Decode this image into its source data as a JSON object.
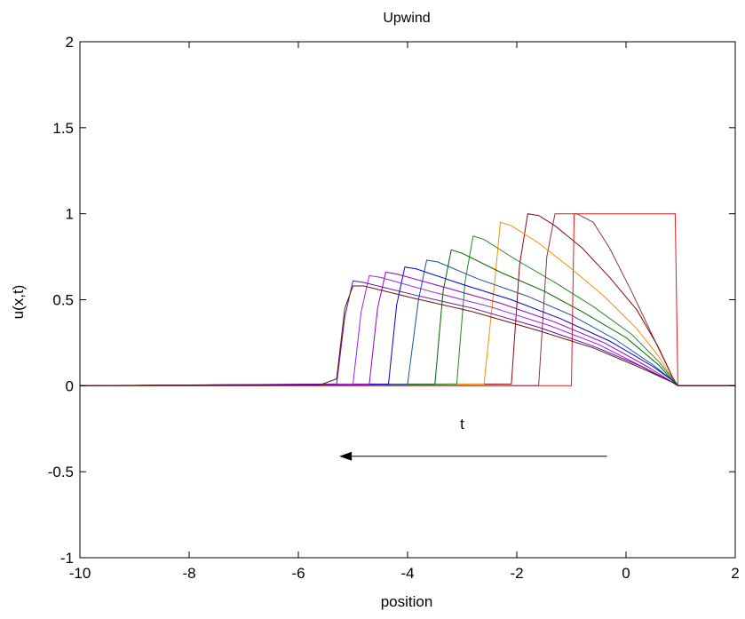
{
  "chart_data": {
    "type": "line",
    "title": "Upwind",
    "xlabel": "position",
    "ylabel": "u(x,t)",
    "xlim": [
      -10,
      2
    ],
    "ylim": [
      -1,
      2
    ],
    "xticks": [
      -10,
      -8,
      -6,
      -4,
      -2,
      0,
      2
    ],
    "yticks": [
      -1,
      -0.5,
      0,
      0.5,
      1,
      1.5,
      2
    ],
    "xtick_labels": [
      "-10",
      "-8",
      "-6",
      "-4",
      "-2",
      "0",
      "2"
    ],
    "ytick_labels": [
      "-1",
      "-0.5",
      "0",
      "0.5",
      "1",
      "1.5",
      "2"
    ],
    "grid": false,
    "annotation": {
      "label": "t",
      "label_x": -3.0,
      "label_y": -0.25,
      "arrow_from": [
        -0.35,
        -0.41
      ],
      "arrow_to": [
        -5.25,
        -0.41
      ],
      "color": "#000000"
    },
    "series": [
      {
        "color": "#e41a1c",
        "x": [
          -10,
          -1.0,
          -0.95,
          0.9,
          0.95,
          2
        ],
        "y": [
          0,
          0,
          1.0,
          1.0,
          0,
          0
        ]
      },
      {
        "color": "#8b3a3a",
        "x": [
          -10,
          -1.6,
          -1.45,
          -1.3,
          -0.9,
          -0.6,
          -0.3,
          0.1,
          0.5,
          0.85,
          0.95,
          2
        ],
        "y": [
          0,
          0,
          0.75,
          1.0,
          1.0,
          0.95,
          0.8,
          0.55,
          0.28,
          0.05,
          0,
          0
        ]
      },
      {
        "color": "#8b0a0a",
        "x": [
          -10,
          -2.1,
          -1.95,
          -1.8,
          -1.6,
          -1.3,
          -0.8,
          -0.3,
          0.2,
          0.6,
          0.85,
          0.95,
          2
        ],
        "y": [
          0,
          0.01,
          0.7,
          1.0,
          0.99,
          0.93,
          0.8,
          0.63,
          0.44,
          0.22,
          0.05,
          0,
          0
        ]
      },
      {
        "color": "#ff8c00",
        "x": [
          -10,
          -2.6,
          -2.4,
          -2.3,
          -2.1,
          -1.6,
          -1.0,
          -0.4,
          0.2,
          0.6,
          0.85,
          0.95,
          2
        ],
        "y": [
          0,
          0.01,
          0.62,
          0.95,
          0.93,
          0.83,
          0.68,
          0.52,
          0.33,
          0.17,
          0.04,
          0,
          0
        ]
      },
      {
        "color": "#228b22",
        "x": [
          -10,
          -3.1,
          -2.95,
          -2.8,
          -2.6,
          -2.0,
          -1.3,
          -0.6,
          0.1,
          0.6,
          0.85,
          0.95,
          2
        ],
        "y": [
          0,
          0.01,
          0.6,
          0.87,
          0.85,
          0.73,
          0.6,
          0.46,
          0.3,
          0.14,
          0.04,
          0,
          0
        ]
      },
      {
        "color": "#006400",
        "x": [
          -10,
          -3.5,
          -3.35,
          -3.2,
          -3.0,
          -2.3,
          -1.5,
          -0.8,
          0.0,
          0.6,
          0.85,
          0.95,
          2
        ],
        "y": [
          0,
          0.01,
          0.55,
          0.79,
          0.77,
          0.66,
          0.55,
          0.43,
          0.28,
          0.12,
          0.03,
          0,
          0
        ]
      },
      {
        "color": "#1e50a0",
        "x": [
          -10,
          -4.0,
          -3.8,
          -3.65,
          -3.45,
          -2.7,
          -1.8,
          -1.0,
          -0.2,
          0.5,
          0.85,
          0.95,
          2
        ],
        "y": [
          0,
          0.01,
          0.5,
          0.73,
          0.72,
          0.62,
          0.52,
          0.41,
          0.27,
          0.12,
          0.03,
          0,
          0
        ]
      },
      {
        "color": "#0000cd",
        "x": [
          -10,
          -4.35,
          -4.2,
          -4.05,
          -3.85,
          -3.0,
          -2.1,
          -1.2,
          -0.3,
          0.5,
          0.85,
          0.95,
          2
        ],
        "y": [
          0,
          0.01,
          0.47,
          0.69,
          0.68,
          0.59,
          0.5,
          0.39,
          0.26,
          0.11,
          0.03,
          0,
          0
        ]
      },
      {
        "color": "#9400d3",
        "x": [
          -10,
          -4.7,
          -4.55,
          -4.4,
          -4.2,
          -3.3,
          -2.3,
          -1.3,
          -0.4,
          0.4,
          0.85,
          0.95,
          2
        ],
        "y": [
          0,
          0.01,
          0.45,
          0.66,
          0.65,
          0.57,
          0.48,
          0.37,
          0.25,
          0.11,
          0.02,
          0,
          0
        ]
      },
      {
        "color": "#a020f0",
        "x": [
          -10,
          -5.0,
          -4.85,
          -4.7,
          -4.5,
          -3.6,
          -2.5,
          -1.4,
          -0.5,
          0.3,
          0.85,
          0.95,
          2
        ],
        "y": [
          0,
          0.01,
          0.43,
          0.64,
          0.63,
          0.55,
          0.46,
          0.35,
          0.24,
          0.11,
          0.02,
          0,
          0
        ]
      },
      {
        "color": "#6a0dad",
        "x": [
          -10,
          -5.3,
          -5.15,
          -5.0,
          -4.8,
          -3.9,
          -2.8,
          -1.6,
          -0.6,
          0.3,
          0.85,
          0.95,
          2
        ],
        "y": [
          0,
          0.01,
          0.4,
          0.61,
          0.6,
          0.53,
          0.45,
          0.34,
          0.23,
          0.11,
          0.02,
          0,
          0
        ]
      },
      {
        "color": "#5a1a0a",
        "x": [
          -10,
          -5.6,
          -5.3,
          -5.15,
          -5.0,
          -4.8,
          -3.9,
          -2.8,
          -1.6,
          -0.6,
          0.3,
          0.85,
          0.95,
          2
        ],
        "y": [
          0,
          0.005,
          0.04,
          0.45,
          0.58,
          0.58,
          0.51,
          0.43,
          0.32,
          0.22,
          0.1,
          0.02,
          0,
          0
        ]
      }
    ]
  }
}
